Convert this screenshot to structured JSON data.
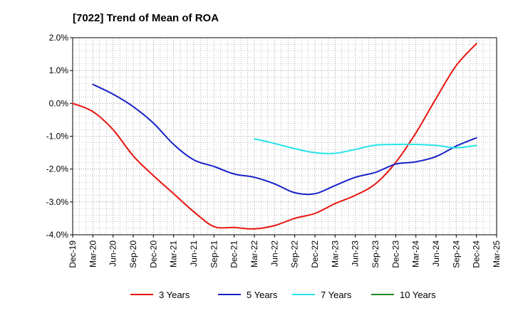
{
  "chart_data": {
    "type": "line",
    "title": "[7022]  Trend of Mean of ROA",
    "xlabel": "",
    "ylabel": "",
    "ylim": [
      -4.0,
      2.0
    ],
    "yticks": [
      "2.0%",
      "1.0%",
      "0.0%",
      "-1.0%",
      "-2.0%",
      "-3.0%",
      "-4.0%"
    ],
    "ytick_values": [
      2,
      1,
      0,
      -1,
      -2,
      -3,
      -4
    ],
    "categories": [
      "Dec-19",
      "Mar-20",
      "Jun-20",
      "Sep-20",
      "Dec-20",
      "Mar-21",
      "Jun-21",
      "Sep-21",
      "Dec-21",
      "Mar-22",
      "Jun-22",
      "Sep-22",
      "Dec-22",
      "Mar-23",
      "Jun-23",
      "Sep-23",
      "Dec-23",
      "Mar-24",
      "Jun-24",
      "Sep-24",
      "Dec-24",
      "Mar-25"
    ],
    "grid": true,
    "legend_position": "bottom",
    "series": [
      {
        "name": "3 Years",
        "color": "#e8140f",
        "values": [
          0.0,
          -0.25,
          -0.8,
          -1.6,
          -2.2,
          -2.75,
          -3.3,
          -3.75,
          -3.78,
          -3.82,
          -3.72,
          -3.5,
          -3.35,
          -3.05,
          -2.8,
          -2.45,
          -1.8,
          -0.9,
          0.15,
          1.15,
          1.82,
          null
        ]
      },
      {
        "name": "5 Years",
        "color": "#1820c8",
        "values": [
          null,
          0.58,
          0.28,
          -0.1,
          -0.6,
          -1.25,
          -1.72,
          -1.92,
          -2.15,
          -2.25,
          -2.45,
          -2.72,
          -2.75,
          -2.5,
          -2.25,
          -2.1,
          -1.85,
          -1.78,
          -1.62,
          -1.3,
          -1.05,
          null
        ]
      },
      {
        "name": "7 Years",
        "color": "#26e3ea",
        "values": [
          null,
          null,
          null,
          null,
          null,
          null,
          null,
          null,
          null,
          -1.08,
          -1.22,
          -1.38,
          -1.5,
          -1.52,
          -1.4,
          -1.27,
          -1.25,
          -1.25,
          -1.28,
          -1.35,
          -1.28,
          null
        ]
      },
      {
        "name": "10 Years",
        "color": "#1f8a1f",
        "values": [
          null,
          null,
          null,
          null,
          null,
          null,
          null,
          null,
          null,
          null,
          null,
          null,
          null,
          null,
          null,
          null,
          null,
          null,
          null,
          null,
          null,
          null
        ]
      }
    ]
  }
}
